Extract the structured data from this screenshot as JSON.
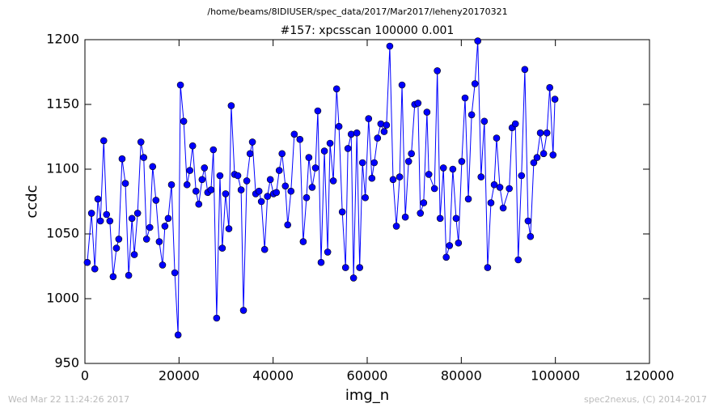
{
  "chart_data": {
    "type": "line",
    "suptitle": "/home/beams/8IDIUSER/spec_data/2017/Mar2017/leheny20170321",
    "title": "#157: xpcsscan 100000 0.001",
    "xlabel": "img_n",
    "ylabel": "ccdc",
    "footer_left": "Wed Mar 22 11:24:26 2017",
    "footer_right": "spec2nexus, (C) 2014-2017",
    "xlim": [
      0,
      120000
    ],
    "xticks": [
      0,
      20000,
      40000,
      60000,
      80000,
      100000,
      120000
    ],
    "ylim": [
      950,
      1200
    ],
    "yticks": [
      950,
      1000,
      1050,
      1100,
      1150,
      1200
    ],
    "series": [
      {
        "name": "ccdc",
        "color": "#0000ff",
        "x": [
          500,
          1400,
          2100,
          2750,
          3300,
          4000,
          4600,
          5300,
          6000,
          6700,
          7200,
          7900,
          8600,
          9300,
          10000,
          10500,
          11200,
          11900,
          12500,
          13100,
          13800,
          14400,
          15100,
          15800,
          16500,
          17000,
          17700,
          18400,
          19100,
          19800,
          20300,
          21000,
          21700,
          22300,
          22900,
          23600,
          24200,
          24900,
          25400,
          26100,
          26800,
          27300,
          28000,
          28700,
          29200,
          29900,
          30600,
          31100,
          31800,
          32500,
          33200,
          33700,
          34400,
          35100,
          35600,
          36300,
          37000,
          37500,
          38200,
          38800,
          39400,
          40100,
          40700,
          41300,
          41900,
          42600,
          43100,
          43800,
          44500,
          45700,
          46400,
          47100,
          47600,
          48300,
          49000,
          49500,
          50200,
          50900,
          51600,
          52100,
          52800,
          53500,
          54000,
          54700,
          55400,
          55900,
          56600,
          57100,
          57800,
          58400,
          59000,
          59600,
          60300,
          61000,
          61500,
          62200,
          62900,
          63600,
          64100,
          64800,
          65500,
          66200,
          66900,
          67400,
          68100,
          68800,
          69400,
          70100,
          70800,
          71300,
          72000,
          72700,
          73100,
          74300,
          74900,
          75500,
          76200,
          76800,
          77500,
          78200,
          78900,
          79400,
          80100,
          80800,
          81500,
          82200,
          82900,
          83500,
          84200,
          84900,
          85600,
          86300,
          87000,
          87500,
          88200,
          88900,
          90200,
          90800,
          91500,
          92100,
          92800,
          93500,
          94200,
          94700,
          95400,
          96100,
          96800,
          97500,
          98200,
          98800,
          99500,
          99900
        ],
        "values": [
          1028,
          1066,
          1023,
          1077,
          1060,
          1122,
          1065,
          1060,
          1017,
          1039,
          1046,
          1108,
          1089,
          1018,
          1062,
          1034,
          1066,
          1121,
          1109,
          1046,
          1055,
          1102,
          1076,
          1044,
          1026,
          1056,
          1062,
          1088,
          1020,
          972,
          1165,
          1137,
          1088,
          1099,
          1118,
          1083,
          1073,
          1092,
          1101,
          1082,
          1084,
          1115,
          985,
          1095,
          1039,
          1081,
          1054,
          1149,
          1096,
          1095,
          1084,
          991,
          1091,
          1112,
          1121,
          1081,
          1083,
          1075,
          1038,
          1079,
          1092,
          1081,
          1082,
          1099,
          1112,
          1087,
          1057,
          1083,
          1127,
          1123,
          1044,
          1078,
          1109,
          1086,
          1101,
          1145,
          1028,
          1114,
          1036,
          1120,
          1091,
          1162,
          1133,
          1067,
          1024,
          1116,
          1127,
          1016,
          1128,
          1024,
          1105,
          1078,
          1139,
          1093,
          1105,
          1124,
          1135,
          1129,
          1134,
          1195,
          1092,
          1056,
          1094,
          1165,
          1063,
          1106,
          1112,
          1150,
          1151,
          1066,
          1074,
          1144,
          1096,
          1085,
          1176,
          1062,
          1101,
          1032,
          1041,
          1100,
          1062,
          1043,
          1106,
          1155,
          1077,
          1142,
          1166,
          1199,
          1094,
          1137,
          1024,
          1074,
          1088,
          1124,
          1086,
          1070,
          1085,
          1132,
          1135,
          1030,
          1095,
          1177,
          1060,
          1048,
          1105,
          1109,
          1128,
          1112,
          1128,
          1163,
          1111,
          1154
        ]
      }
    ]
  }
}
